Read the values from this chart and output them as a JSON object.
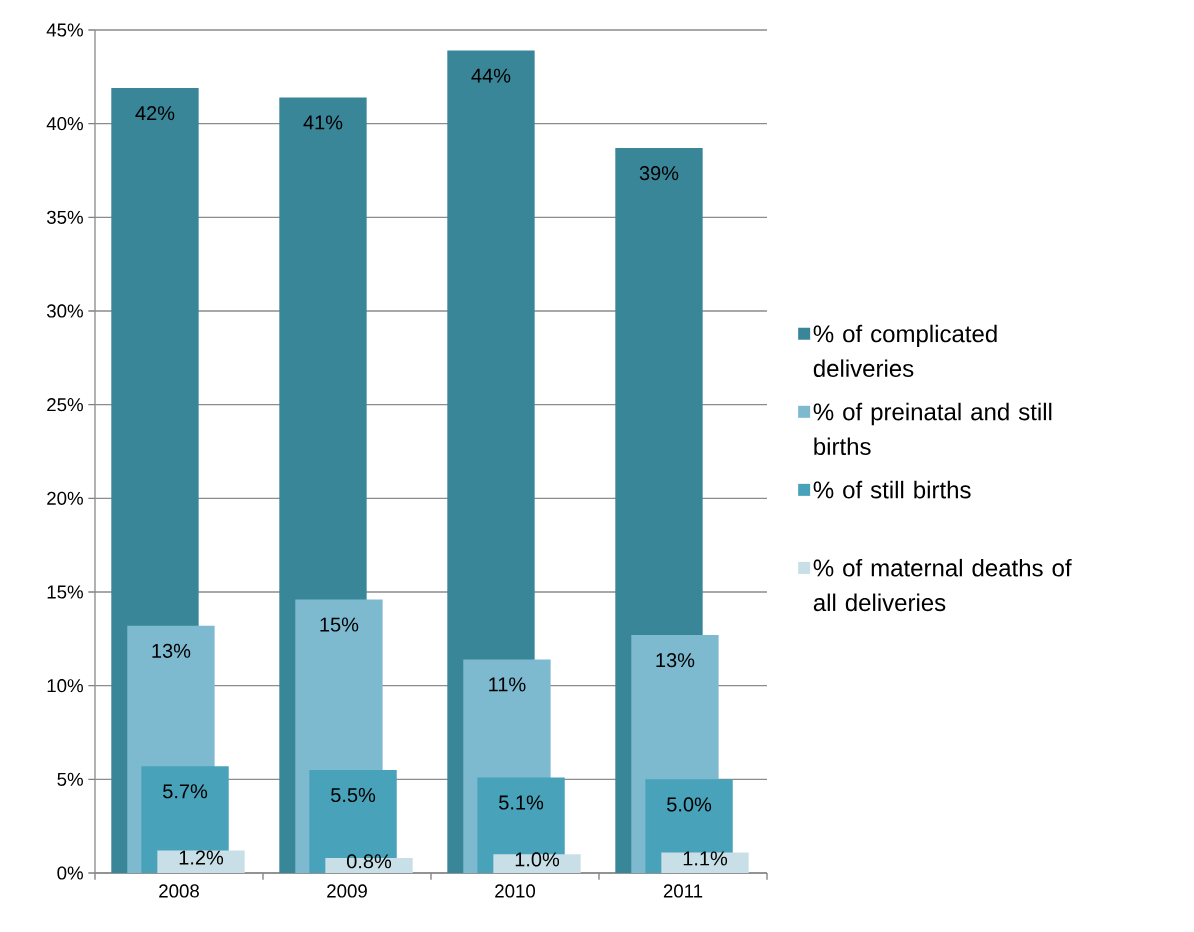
{
  "chart_data": {
    "type": "bar",
    "categories": [
      "2008",
      "2009",
      "2010",
      "2011"
    ],
    "series": [
      {
        "name": "% of complicated deliveries",
        "color": "#3a8699",
        "values": [
          41.9,
          41.4,
          43.9,
          38.7
        ],
        "value_labels": [
          "42%",
          "41%",
          "44%",
          "39%"
        ]
      },
      {
        "name": "% of preinatal and still births",
        "color": "#7db9cf",
        "values": [
          13.2,
          14.6,
          11.4,
          12.7
        ],
        "value_labels": [
          "13%",
          "15%",
          "11%",
          "13%"
        ]
      },
      {
        "name": "% of still births",
        "color": "#48a2b9",
        "values": [
          5.7,
          5.5,
          5.1,
          5.0
        ],
        "value_labels": [
          "5.7%",
          "5.5%",
          "5.1%",
          "5.0%"
        ]
      },
      {
        "name": "% of maternal deaths of all deliveries",
        "color": "#c8dfe7",
        "values": [
          1.2,
          0.8,
          1.0,
          1.1
        ],
        "value_labels": [
          "1.2%",
          "0.8%",
          "1.0%",
          "1.1%"
        ]
      }
    ],
    "ylim": [
      0,
      45
    ],
    "yticks": [
      {
        "value": 0,
        "label": "0%"
      },
      {
        "value": 5,
        "label": "5%"
      },
      {
        "value": 10,
        "label": "10%"
      },
      {
        "value": 15,
        "label": "15%"
      },
      {
        "value": 20,
        "label": "20%"
      },
      {
        "value": 25,
        "label": "25%"
      },
      {
        "value": 30,
        "label": "30%"
      },
      {
        "value": 35,
        "label": "35%"
      },
      {
        "value": 40,
        "label": "40%"
      },
      {
        "value": 45,
        "label": "45%"
      }
    ],
    "grid": "y",
    "legend": "right"
  }
}
